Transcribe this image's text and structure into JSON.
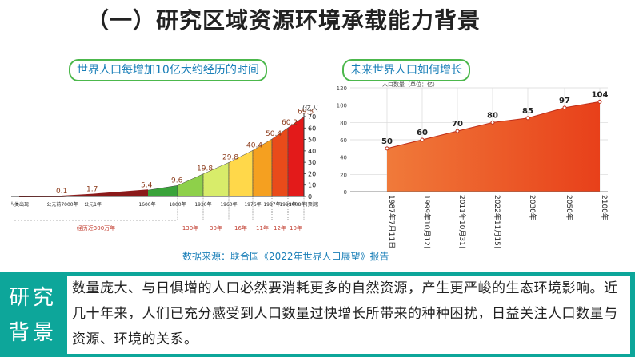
{
  "slide": {
    "title": "（一）研究区域资源环境承载能力背景",
    "left_caption": "世界人口每增加10亿大约经历的时间",
    "right_caption": "未来世界人口如何增长",
    "source_note": "数据来源：联合国《2022年世界人口展望》报告",
    "background_label_1": "研究",
    "background_label_2": "背景",
    "background_text": "数量庞大、与日俱增的人口必然要消耗更多的自然资源，产生更严峻的生态环境影响。近几十年来，人们已充分感受到人口数量过快增长所带来的种种困扰，日益关注人口数量与资源、环境的关系。"
  },
  "chart_data": [
    {
      "type": "area",
      "unit": "(亿人)",
      "x": [
        "人类出现",
        "公元前7000年",
        "公元1年",
        "1600年",
        "1800年",
        "1930年",
        "1960年",
        "1976年",
        "1987年",
        "1999年",
        "2008年(预测)"
      ],
      "values": [
        0,
        0.1,
        1.7,
        5.4,
        9.6,
        19.8,
        29.8,
        40.4,
        50.4,
        60.2,
        69.8
      ],
      "yticks": [
        "0",
        "10",
        "20",
        "30",
        "40",
        "50",
        "60",
        "70"
      ],
      "ylim": [
        0,
        70
      ],
      "intervals": [
        "经历近300万年",
        "130年",
        "30年",
        "16年",
        "11年",
        "12年",
        "10年"
      ],
      "colors": [
        "#8b1a1a",
        "#3aa33a",
        "#8ed04a",
        "#d8ec6a",
        "#ffd84a",
        "#f5a020",
        "#e94b1a",
        "#e31a1a"
      ]
    },
    {
      "type": "area",
      "ylabel": "人口数量（单位：亿）",
      "x": [
        "1987年7月11日",
        "1999年10月12日",
        "2011年10月31日",
        "2022年11月15日",
        "2030年",
        "2050年",
        "2100年"
      ],
      "values": [
        50,
        60,
        70,
        80,
        85,
        97,
        104
      ],
      "yticks": [
        "0",
        "20",
        "40",
        "60",
        "80",
        "100",
        "120"
      ],
      "ylim": [
        0,
        120
      ],
      "grid": true,
      "colors": [
        "#f07a3a",
        "#e8401a"
      ]
    }
  ]
}
